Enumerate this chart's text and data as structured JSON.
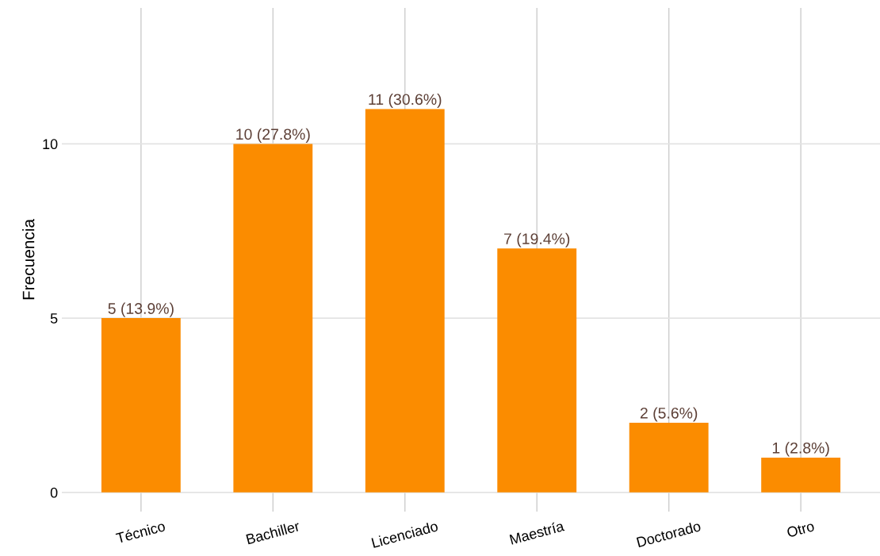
{
  "chart_data": {
    "type": "bar",
    "ylabel": "Frecuencia",
    "categories": [
      "Técnico",
      "Bachiller",
      "Licenciado",
      "Maestría",
      "Doctorado",
      "Otro"
    ],
    "values": [
      5,
      10,
      11,
      7,
      2,
      1
    ],
    "value_labels": [
      "5 (13.9%)",
      "10 (27.8%)",
      "11 (30.6%)",
      "7 (19.4%)",
      "2 (5.6%)",
      "1 (2.8%)"
    ],
    "color": "#fb8c00",
    "ylim": [
      -0.55,
      13.9
    ],
    "yticks": [
      0,
      5,
      10
    ],
    "grid": true
  }
}
